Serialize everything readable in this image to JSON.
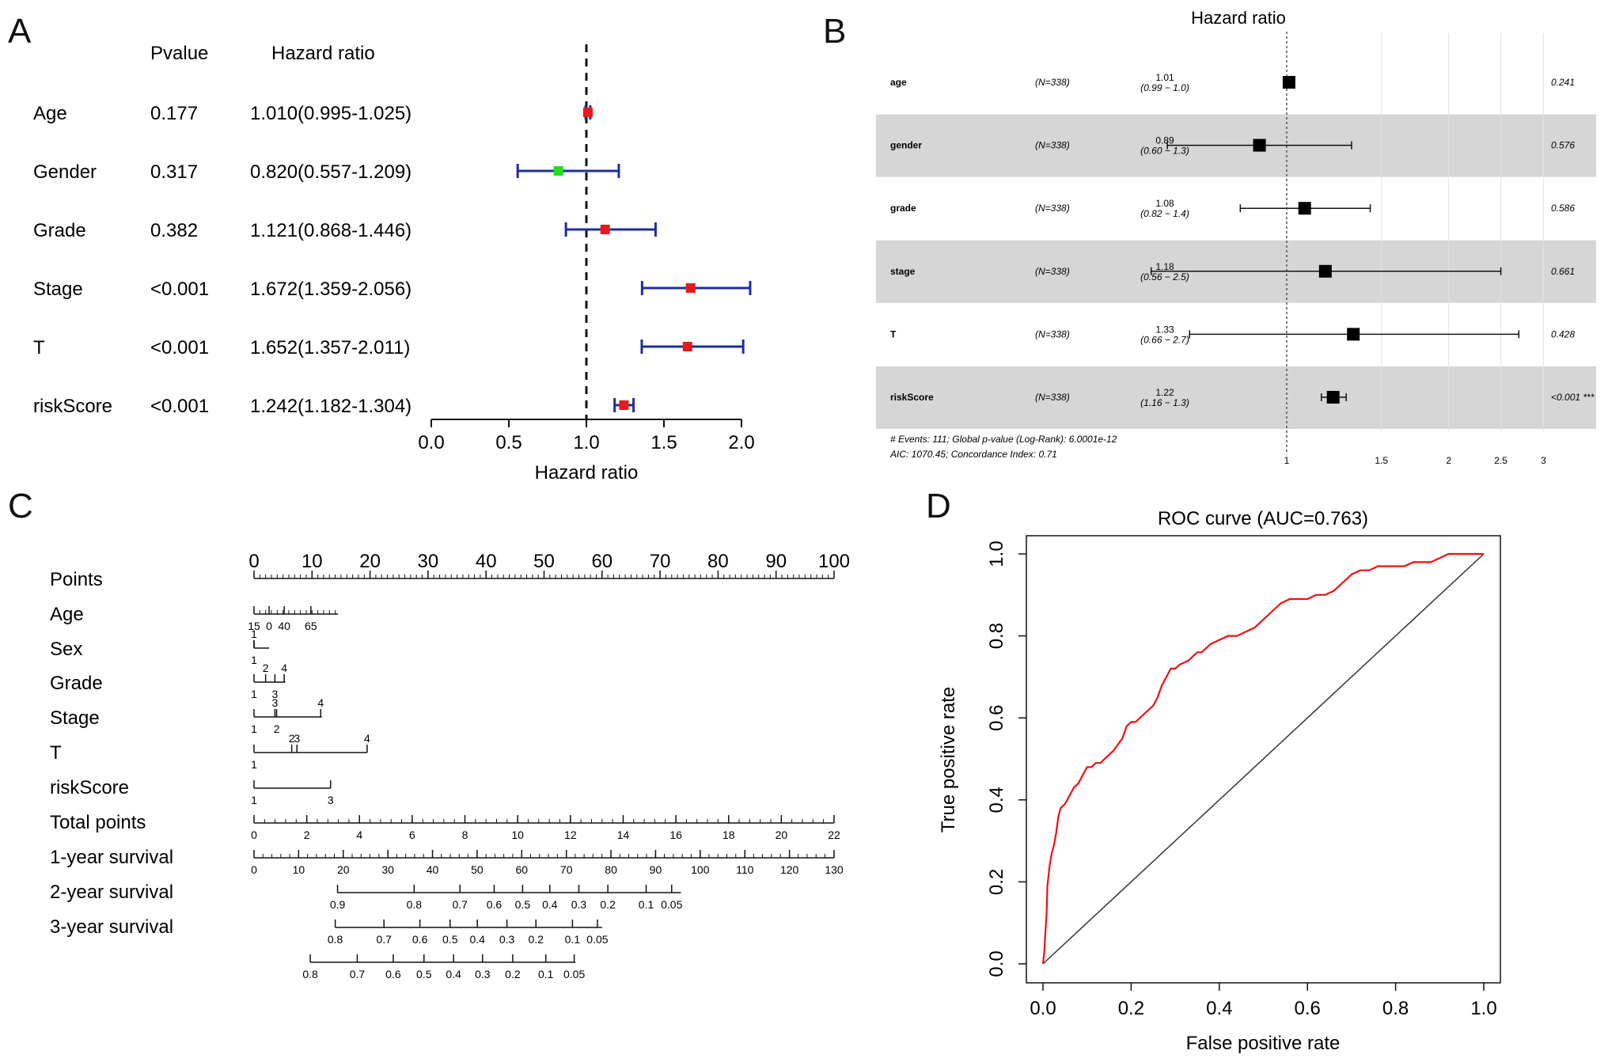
{
  "panel_labels": [
    "A",
    "B",
    "C",
    "D"
  ],
  "chart_data": [
    {
      "type": "forest",
      "panel": "A",
      "headers": {
        "pvalue": "Pvalue",
        "hr": "Hazard ratio"
      },
      "rows": [
        {
          "name": "Age",
          "pvalue": "0.177",
          "hr_text": "1.010(0.995-1.025)",
          "hr": 1.01,
          "lo": 0.995,
          "hi": 1.025,
          "color": "#e41a1c"
        },
        {
          "name": "Gender",
          "pvalue": "0.317",
          "hr_text": "0.820(0.557-1.209)",
          "hr": 0.82,
          "lo": 0.557,
          "hi": 1.209,
          "color": "#22dd22"
        },
        {
          "name": "Grade",
          "pvalue": "0.382",
          "hr_text": "1.121(0.868-1.446)",
          "hr": 1.121,
          "lo": 0.868,
          "hi": 1.446,
          "color": "#e41a1c"
        },
        {
          "name": "Stage",
          "pvalue": "<0.001",
          "hr_text": "1.672(1.359-2.056)",
          "hr": 1.672,
          "lo": 1.359,
          "hi": 2.056,
          "color": "#e41a1c"
        },
        {
          "name": "T",
          "pvalue": "<0.001",
          "hr_text": "1.652(1.357-2.011)",
          "hr": 1.652,
          "lo": 1.357,
          "hi": 2.011,
          "color": "#e41a1c"
        },
        {
          "name": "riskScore",
          "pvalue": "<0.001",
          "hr_text": "1.242(1.182-1.304)",
          "hr": 1.242,
          "lo": 1.182,
          "hi": 1.304,
          "color": "#e41a1c"
        }
      ],
      "xlim": [
        0,
        2
      ],
      "xticks": [
        "0.0",
        "0.5",
        "1.0",
        "1.5",
        "2.0"
      ],
      "xlabel": "Hazard ratio",
      "reference": 1.0,
      "ci_color": "#1f2e9c"
    },
    {
      "type": "forest",
      "panel": "B",
      "title": "Hazard ratio",
      "scale": "log",
      "xlim": [
        0.75,
        3.35
      ],
      "xticks": [
        {
          "v": 1,
          "label": "1"
        },
        {
          "v": 1.5,
          "label": "1.5"
        },
        {
          "v": 2,
          "label": "2"
        },
        {
          "v": 2.5,
          "label": "2.5"
        },
        {
          "v": 3,
          "label": "3"
        }
      ],
      "rows": [
        {
          "name": "age",
          "n": "(N=338)",
          "hr_label": "1.01",
          "ci_label": "(0.99 − 1.0)",
          "hr": 1.01,
          "lo": 0.99,
          "hi": 1.02,
          "p": "0.241",
          "shaded": false
        },
        {
          "name": "gender",
          "n": "(N=338)",
          "hr_label": "0.89",
          "ci_label": "(0.60 − 1.3)",
          "hr": 0.89,
          "lo": 0.6,
          "hi": 1.32,
          "p": "0.576",
          "shaded": true
        },
        {
          "name": "grade",
          "n": "(N=338)",
          "hr_label": "1.08",
          "ci_label": "(0.82 − 1.4)",
          "hr": 1.08,
          "lo": 0.82,
          "hi": 1.43,
          "p": "0.586",
          "shaded": false
        },
        {
          "name": "stage",
          "n": "(N=338)",
          "hr_label": "1.18",
          "ci_label": "(0.56 − 2.5)",
          "hr": 1.18,
          "lo": 0.56,
          "hi": 2.5,
          "p": "0.661",
          "shaded": true
        },
        {
          "name": "T",
          "n": "(N=338)",
          "hr_label": "1.33",
          "ci_label": "(0.66 − 2.7)",
          "hr": 1.33,
          "lo": 0.66,
          "hi": 2.7,
          "p": "0.428",
          "shaded": false
        },
        {
          "name": "riskScore",
          "n": "(N=338)",
          "hr_label": "1.22",
          "ci_label": "(1.16 − 1.3)",
          "hr": 1.22,
          "lo": 1.16,
          "hi": 1.29,
          "p": "<0.001 ***",
          "shaded": true
        }
      ],
      "footer": [
        "# Events: 111; Global p-value (Log-Rank): 6.0001e-12",
        "AIC: 1070.45; Concordance Index: 0.71"
      ]
    },
    {
      "type": "nomogram",
      "panel": "C",
      "rows": [
        {
          "label": "Points",
          "range": [
            0,
            100
          ],
          "major": [
            {
              "v": 0,
              "t": "0"
            },
            {
              "v": 10,
              "t": "10"
            },
            {
              "v": 20,
              "t": "20"
            },
            {
              "v": 30,
              "t": "30"
            },
            {
              "v": 40,
              "t": "40"
            },
            {
              "v": 50,
              "t": "50"
            },
            {
              "v": 60,
              "t": "60"
            },
            {
              "v": 70,
              "t": "70"
            },
            {
              "v": 80,
              "t": "80"
            },
            {
              "v": 90,
              "t": "90"
            },
            {
              "v": 100,
              "t": "100"
            }
          ],
          "minor_step": 1,
          "labels_above": true,
          "big": true
        },
        {
          "label": "Age",
          "range": [
            0,
            14.5
          ],
          "minor_step": 1,
          "major": [
            {
              "v": 0,
              "t": "15"
            },
            {
              "v": 2.6,
              "t": "0"
            },
            {
              "v": 5.2,
              "t": "40"
            },
            {
              "v": 9.8,
              "t": "65"
            }
          ]
        },
        {
          "label": "Sex",
          "range": [
            0,
            2.6
          ],
          "major": [
            {
              "v": 0,
              "t": "1"
            }
          ],
          "stagger": [
            {
              "v": 0,
              "t": "1",
              "up": true
            }
          ]
        },
        {
          "label": "Grade",
          "range": [
            0,
            5.4
          ],
          "major": [
            {
              "v": 0,
              "t": "1"
            },
            {
              "v": 3.6,
              "t": "3"
            }
          ],
          "stagger": [
            {
              "v": 2.0,
              "t": "2",
              "up": true
            },
            {
              "v": 5.2,
              "t": "4",
              "up": true
            }
          ]
        },
        {
          "label": "Stage",
          "range": [
            0,
            11.7
          ],
          "major": [
            {
              "v": 0,
              "t": "1"
            },
            {
              "v": 3.9,
              "t": "2"
            },
            {
              "v": 11.5,
              "t": "4",
              "up": true
            }
          ],
          "stagger": [
            {
              "v": 3.6,
              "t": "3",
              "up": true
            }
          ]
        },
        {
          "label": "T",
          "range": [
            0,
            19.5
          ],
          "major": [
            {
              "v": 0,
              "t": "1"
            },
            {
              "v": 19.5,
              "t": "4",
              "up": true
            }
          ],
          "stagger": [
            {
              "v": 6.5,
              "t": "2",
              "up": true
            },
            {
              "v": 7.4,
              "t": "3",
              "up": true
            }
          ]
        },
        {
          "label": "riskScore",
          "range": [
            0,
            13.2
          ],
          "major": [
            {
              "v": 0,
              "t": "1"
            },
            {
              "v": 13.2,
              "t": "3"
            }
          ]
        },
        {
          "label": "Total points",
          "range": [
            0,
            100
          ],
          "major": [
            {
              "v": 0,
              "t": "0"
            },
            {
              "v": 9.09,
              "t": "2"
            },
            {
              "v": 18.18,
              "t": "4"
            },
            {
              "v": 27.27,
              "t": "6"
            },
            {
              "v": 36.36,
              "t": "8"
            },
            {
              "v": 45.45,
              "t": "10"
            },
            {
              "v": 54.55,
              "t": "12"
            },
            {
              "v": 63.64,
              "t": "14"
            },
            {
              "v": 72.73,
              "t": "16"
            },
            {
              "v": 81.82,
              "t": "18"
            },
            {
              "v": 90.91,
              "t": "20"
            },
            {
              "v": 100,
              "t": "22"
            }
          ],
          "minor_step": 1.818
        },
        {
          "label": "1-year survival",
          "range": [
            0,
            100
          ],
          "major": [
            {
              "v": 0,
              "t": "0"
            },
            {
              "v": 7.69,
              "t": "10"
            },
            {
              "v": 15.38,
              "t": "20"
            },
            {
              "v": 23.08,
              "t": "30"
            },
            {
              "v": 30.77,
              "t": "40"
            },
            {
              "v": 38.46,
              "t": "50"
            },
            {
              "v": 46.15,
              "t": "60"
            },
            {
              "v": 53.85,
              "t": "70"
            },
            {
              "v": 61.54,
              "t": "80"
            },
            {
              "v": 69.23,
              "t": "90"
            },
            {
              "v": 76.92,
              "t": "100"
            },
            {
              "v": 84.62,
              "t": "110"
            },
            {
              "v": 92.31,
              "t": "120"
            },
            {
              "v": 100,
              "t": "130"
            }
          ],
          "minor_step": 1.538
        },
        {
          "label": "2-year survival",
          "range": [
            14.4,
            73.6
          ],
          "major": [
            {
              "v": 14.4,
              "t": "0.9"
            },
            {
              "v": 27.6,
              "t": "0.8"
            },
            {
              "v": 35.5,
              "t": "0.7"
            },
            {
              "v": 41.4,
              "t": "0.6"
            },
            {
              "v": 46.3,
              "t": "0.5"
            },
            {
              "v": 51.0,
              "t": "0.4"
            },
            {
              "v": 56.0,
              "t": "0.3"
            },
            {
              "v": 61.0,
              "t": "0.2"
            },
            {
              "v": 67.6,
              "t": "0.1"
            },
            {
              "v": 72.0,
              "t": "0.05"
            }
          ]
        },
        {
          "label": "3-year survival",
          "range": [
            14.0,
            60.0
          ],
          "major": [
            {
              "v": 14.0,
              "t": "0.8"
            },
            {
              "v": 22.4,
              "t": "0.7"
            },
            {
              "v": 28.6,
              "t": "0.6"
            },
            {
              "v": 33.8,
              "t": "0.5"
            },
            {
              "v": 38.5,
              "t": "0.4"
            },
            {
              "v": 43.6,
              "t": "0.3"
            },
            {
              "v": 48.6,
              "t": "0.2"
            },
            {
              "v": 54.9,
              "t": "0.1"
            },
            {
              "v": 59.2,
              "t": "0.05"
            }
          ]
        },
        {
          "label": "",
          "range": [
            9.7,
            55.4
          ],
          "major": [
            {
              "v": 9.7,
              "t": "0.8"
            },
            {
              "v": 17.8,
              "t": "0.7"
            },
            {
              "v": 24.0,
              "t": "0.6"
            },
            {
              "v": 29.3,
              "t": "0.5"
            },
            {
              "v": 34.4,
              "t": "0.4"
            },
            {
              "v": 39.4,
              "t": "0.3"
            },
            {
              "v": 44.6,
              "t": "0.2"
            },
            {
              "v": 50.3,
              "t": "0.1"
            },
            {
              "v": 55.2,
              "t": "0.05"
            }
          ]
        }
      ]
    },
    {
      "type": "line",
      "panel": "D",
      "title": "ROC curve (AUC=0.763)",
      "xlabel": "False positive rate",
      "ylabel": "True positive rate",
      "xlim": [
        0,
        1
      ],
      "ylim": [
        0,
        1
      ],
      "xticks": [
        "0.0",
        "0.2",
        "0.4",
        "0.6",
        "0.8",
        "1.0"
      ],
      "yticks": [
        "0.0",
        "0.2",
        "0.4",
        "0.6",
        "0.8",
        "1.0"
      ],
      "color": "#ee1111",
      "x": [
        0,
        0.003,
        0.005,
        0.008,
        0.01,
        0.012,
        0.015,
        0.02,
        0.025,
        0.03,
        0.035,
        0.04,
        0.05,
        0.06,
        0.07,
        0.08,
        0.09,
        0.1,
        0.11,
        0.12,
        0.13,
        0.14,
        0.16,
        0.18,
        0.19,
        0.2,
        0.21,
        0.22,
        0.23,
        0.25,
        0.26,
        0.27,
        0.28,
        0.29,
        0.3,
        0.31,
        0.33,
        0.35,
        0.36,
        0.38,
        0.4,
        0.42,
        0.44,
        0.46,
        0.48,
        0.5,
        0.52,
        0.54,
        0.56,
        0.58,
        0.6,
        0.62,
        0.64,
        0.66,
        0.68,
        0.7,
        0.72,
        0.74,
        0.76,
        0.78,
        0.8,
        0.82,
        0.84,
        0.86,
        0.88,
        0.9,
        0.92,
        0.95,
        1.0
      ],
      "y": [
        0,
        0.03,
        0.07,
        0.12,
        0.19,
        0.21,
        0.24,
        0.27,
        0.29,
        0.32,
        0.36,
        0.38,
        0.39,
        0.41,
        0.43,
        0.44,
        0.46,
        0.48,
        0.48,
        0.49,
        0.49,
        0.5,
        0.52,
        0.55,
        0.58,
        0.59,
        0.59,
        0.6,
        0.61,
        0.63,
        0.65,
        0.68,
        0.7,
        0.72,
        0.72,
        0.73,
        0.74,
        0.76,
        0.76,
        0.78,
        0.79,
        0.8,
        0.8,
        0.81,
        0.82,
        0.84,
        0.86,
        0.88,
        0.89,
        0.89,
        0.89,
        0.9,
        0.9,
        0.91,
        0.93,
        0.95,
        0.96,
        0.96,
        0.97,
        0.97,
        0.97,
        0.97,
        0.98,
        0.98,
        0.98,
        0.99,
        1.0,
        1.0,
        1.0
      ]
    }
  ]
}
